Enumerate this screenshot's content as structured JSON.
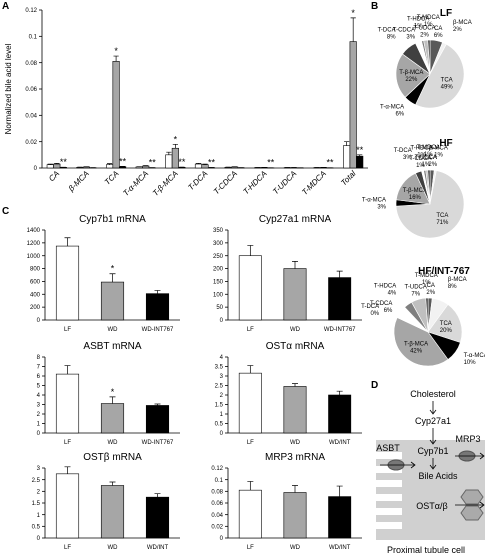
{
  "panel_labels": [
    "A",
    "B",
    "C",
    "D"
  ],
  "chart_data": [
    {
      "type": "bar",
      "ylabel": "Normalized bile acid level",
      "grid": false,
      "categories": [
        "CA",
        "β-MCA",
        "TCA",
        "T-α-MCA",
        "T-β-MCA",
        "T-DCA",
        "T-CDCA",
        "T-HDCA",
        "T-UDCA",
        "T-MDCA",
        "Total"
      ],
      "ylim": [
        0,
        0.12
      ],
      "yticks": [
        0,
        0.02,
        0.04,
        0.06,
        0.08,
        0.1,
        0.12
      ],
      "series": [
        {
          "color": "#ffffff",
          "values": [
            0.0025,
            0.0005,
            0.0025,
            0.0008,
            0.01,
            0.003,
            0.0005,
            0.0003,
            0.0003,
            0.0003,
            0.017
          ],
          "errors": [
            0.0005,
            0.0002,
            0.0008,
            0.0002,
            0.002,
            0.0005,
            0.0002,
            0.0001,
            0.0001,
            0.0001,
            0.003
          ],
          "annotations": [
            null,
            null,
            null,
            null,
            null,
            null,
            null,
            null,
            null,
            null,
            null
          ]
        },
        {
          "color": "#a6a6a6",
          "values": [
            0.003,
            0.0008,
            0.081,
            0.0015,
            0.015,
            0.0025,
            0.0008,
            0.0004,
            0.0003,
            0.0004,
            0.096
          ],
          "errors": [
            0.0005,
            0.0002,
            0.004,
            0.0003,
            0.003,
            0.0005,
            0.0002,
            0.0001,
            0.0001,
            0.0001,
            0.018
          ],
          "annotations": [
            null,
            null,
            "*",
            null,
            "*",
            null,
            null,
            null,
            null,
            null,
            "*"
          ]
        },
        {
          "color": "#000000",
          "values": [
            0.0005,
            0.0002,
            0.001,
            0.0002,
            0.0005,
            0.0003,
            0.0002,
            0.0001,
            0.0001,
            0.0001,
            0.009
          ],
          "errors": [
            0.0001,
            0.0001,
            0.0003,
            0.0001,
            0.0002,
            0.0001,
            0.0001,
            0.0001,
            0.0001,
            0.0001,
            0.001
          ],
          "annotations": [
            "**",
            null,
            "**",
            "**",
            "**",
            "**",
            null,
            "**",
            null,
            "**",
            "**"
          ]
        }
      ]
    },
    {
      "type": "pie",
      "title": "LF",
      "categories": [
        "CA",
        "β-MCA",
        "TCA",
        "T-α-MCA",
        "T-β-MCA",
        "T-DCA",
        "T-CDCA",
        "T-HDCA",
        "T-UDCA",
        "T-MDCA"
      ],
      "values": [
        6,
        2,
        49,
        6,
        22,
        8,
        3,
        1,
        2,
        1
      ],
      "value_labels": [
        "6%",
        "2%",
        "49%",
        "6%",
        "22%",
        "8%",
        "3%",
        "1%",
        "2%",
        "1%"
      ],
      "colors": [
        "#595959",
        "#f2f2f2",
        "#d9d9d9",
        "#000000",
        "#a6a6a6",
        "#404040",
        "#ffffff",
        "#7f7f7f",
        "#bfbfbf",
        "#262626"
      ]
    },
    {
      "type": "pie",
      "title": "HF",
      "categories": [
        "CA",
        "β-MCA",
        "TCA",
        "T-α-MCA",
        "T-β-MCA",
        "T-DCA",
        "T-CDCA",
        "T-HDCA",
        "T-UDCA",
        "T-MDCA"
      ],
      "values": [
        2,
        1,
        71,
        3,
        16,
        3,
        1,
        1,
        1,
        1
      ],
      "value_labels": [
        "2%",
        "1%",
        "71%",
        "3%",
        "16%",
        "3%",
        "1%",
        "1%",
        "1%",
        "1%"
      ],
      "colors": [
        "#595959",
        "#f2f2f2",
        "#d9d9d9",
        "#000000",
        "#a6a6a6",
        "#404040",
        "#ffffff",
        "#7f7f7f",
        "#bfbfbf",
        "#262626"
      ]
    },
    {
      "type": "pie",
      "title": "HF/INT-767",
      "categories": [
        "CA",
        "β-MCA",
        "TCA",
        "T-α-MCA",
        "T-β-MCA",
        "T-DCA",
        "T-CDCA",
        "T-HDCA",
        "T-UDCA",
        "T-MDCA"
      ],
      "values": [
        2,
        8,
        20,
        10,
        42,
        0,
        6,
        4,
        7,
        1
      ],
      "value_labels": [
        "2%",
        "8%",
        "20%",
        "10%",
        "42%",
        "0%",
        "6%",
        "4%",
        "7%",
        "1%"
      ],
      "colors": [
        "#595959",
        "#f2f2f2",
        "#d9d9d9",
        "#000000",
        "#a6a6a6",
        "#404040",
        "#ffffff",
        "#7f7f7f",
        "#bfbfbf",
        "#262626"
      ]
    },
    {
      "type": "bar",
      "title": "Cyp7b1 mRNA",
      "categories": [
        "LF",
        "WD",
        "WD-INT767"
      ],
      "values": [
        1150,
        590,
        410
      ],
      "errors": [
        130,
        130,
        50
      ],
      "annotations": [
        null,
        "*",
        null
      ],
      "colors": [
        "#ffffff",
        "#a6a6a6",
        "#000000"
      ],
      "ylim": [
        0,
        1400
      ],
      "yticks": [
        0,
        200,
        400,
        600,
        800,
        1000,
        1200,
        1400
      ]
    },
    {
      "type": "bar",
      "title": "Cyp27a1 mRNA",
      "categories": [
        "LF",
        "WD",
        "WD-INT767"
      ],
      "values": [
        250,
        200,
        165
      ],
      "errors": [
        40,
        28,
        25
      ],
      "annotations": [
        null,
        null,
        null
      ],
      "colors": [
        "#ffffff",
        "#a6a6a6",
        "#000000"
      ],
      "ylim": [
        0,
        350
      ],
      "yticks": [
        0,
        50,
        100,
        150,
        200,
        250,
        300,
        350
      ]
    },
    {
      "type": "bar",
      "title": "ASBT mRNA",
      "categories": [
        "LF",
        "WD",
        "WD-INT767"
      ],
      "values": [
        6.2,
        3.1,
        2.9
      ],
      "errors": [
        0.9,
        0.7,
        0.15
      ],
      "annotations": [
        null,
        "*",
        null
      ],
      "colors": [
        "#ffffff",
        "#a6a6a6",
        "#000000"
      ],
      "ylim": [
        0,
        8
      ],
      "yticks": [
        0,
        1,
        2,
        3,
        4,
        5,
        6,
        7,
        8
      ]
    },
    {
      "type": "bar",
      "title": "OSTα mRNA",
      "categories": [
        "LF",
        "WD",
        "WD/INT"
      ],
      "values": [
        3.15,
        2.45,
        2.0
      ],
      "errors": [
        0.4,
        0.15,
        0.2
      ],
      "annotations": [
        null,
        null,
        null
      ],
      "colors": [
        "#ffffff",
        "#a6a6a6",
        "#000000"
      ],
      "ylim": [
        0,
        4
      ],
      "yticks": [
        0,
        0.5,
        1,
        1.5,
        2,
        2.5,
        3,
        3.5,
        4
      ]
    },
    {
      "type": "bar",
      "title": "OSTβ mRNA",
      "categories": [
        "LF",
        "WD",
        "WD/INT"
      ],
      "values": [
        2.75,
        2.25,
        1.75
      ],
      "errors": [
        0.3,
        0.15,
        0.15
      ],
      "annotations": [
        null,
        null,
        null
      ],
      "colors": [
        "#ffffff",
        "#a6a6a6",
        "#000000"
      ],
      "ylim": [
        0,
        3
      ],
      "yticks": [
        0,
        0.5,
        1,
        1.5,
        2,
        2.5,
        3
      ]
    },
    {
      "type": "bar",
      "title": "MRP3 mRNA",
      "categories": [
        "LF",
        "WD",
        "WD/INT"
      ],
      "values": [
        0.082,
        0.078,
        0.071
      ],
      "errors": [
        0.015,
        0.012,
        0.018
      ],
      "annotations": [
        null,
        null,
        null
      ],
      "colors": [
        "#ffffff",
        "#a6a6a6",
        "#000000"
      ],
      "ylim": [
        0,
        0.12
      ],
      "yticks": [
        0,
        0.02,
        0.04,
        0.06,
        0.08,
        0.1,
        0.12
      ]
    }
  ],
  "diagram": {
    "start": "Cholesterol",
    "enzyme_1": "Cyp27a1",
    "enzyme_2": "Cyp7b1",
    "product": "Bile Acids",
    "transporters": [
      "ASBT",
      "MRP3",
      "OSTα/β"
    ],
    "cell": "Proximal tubule cell"
  }
}
